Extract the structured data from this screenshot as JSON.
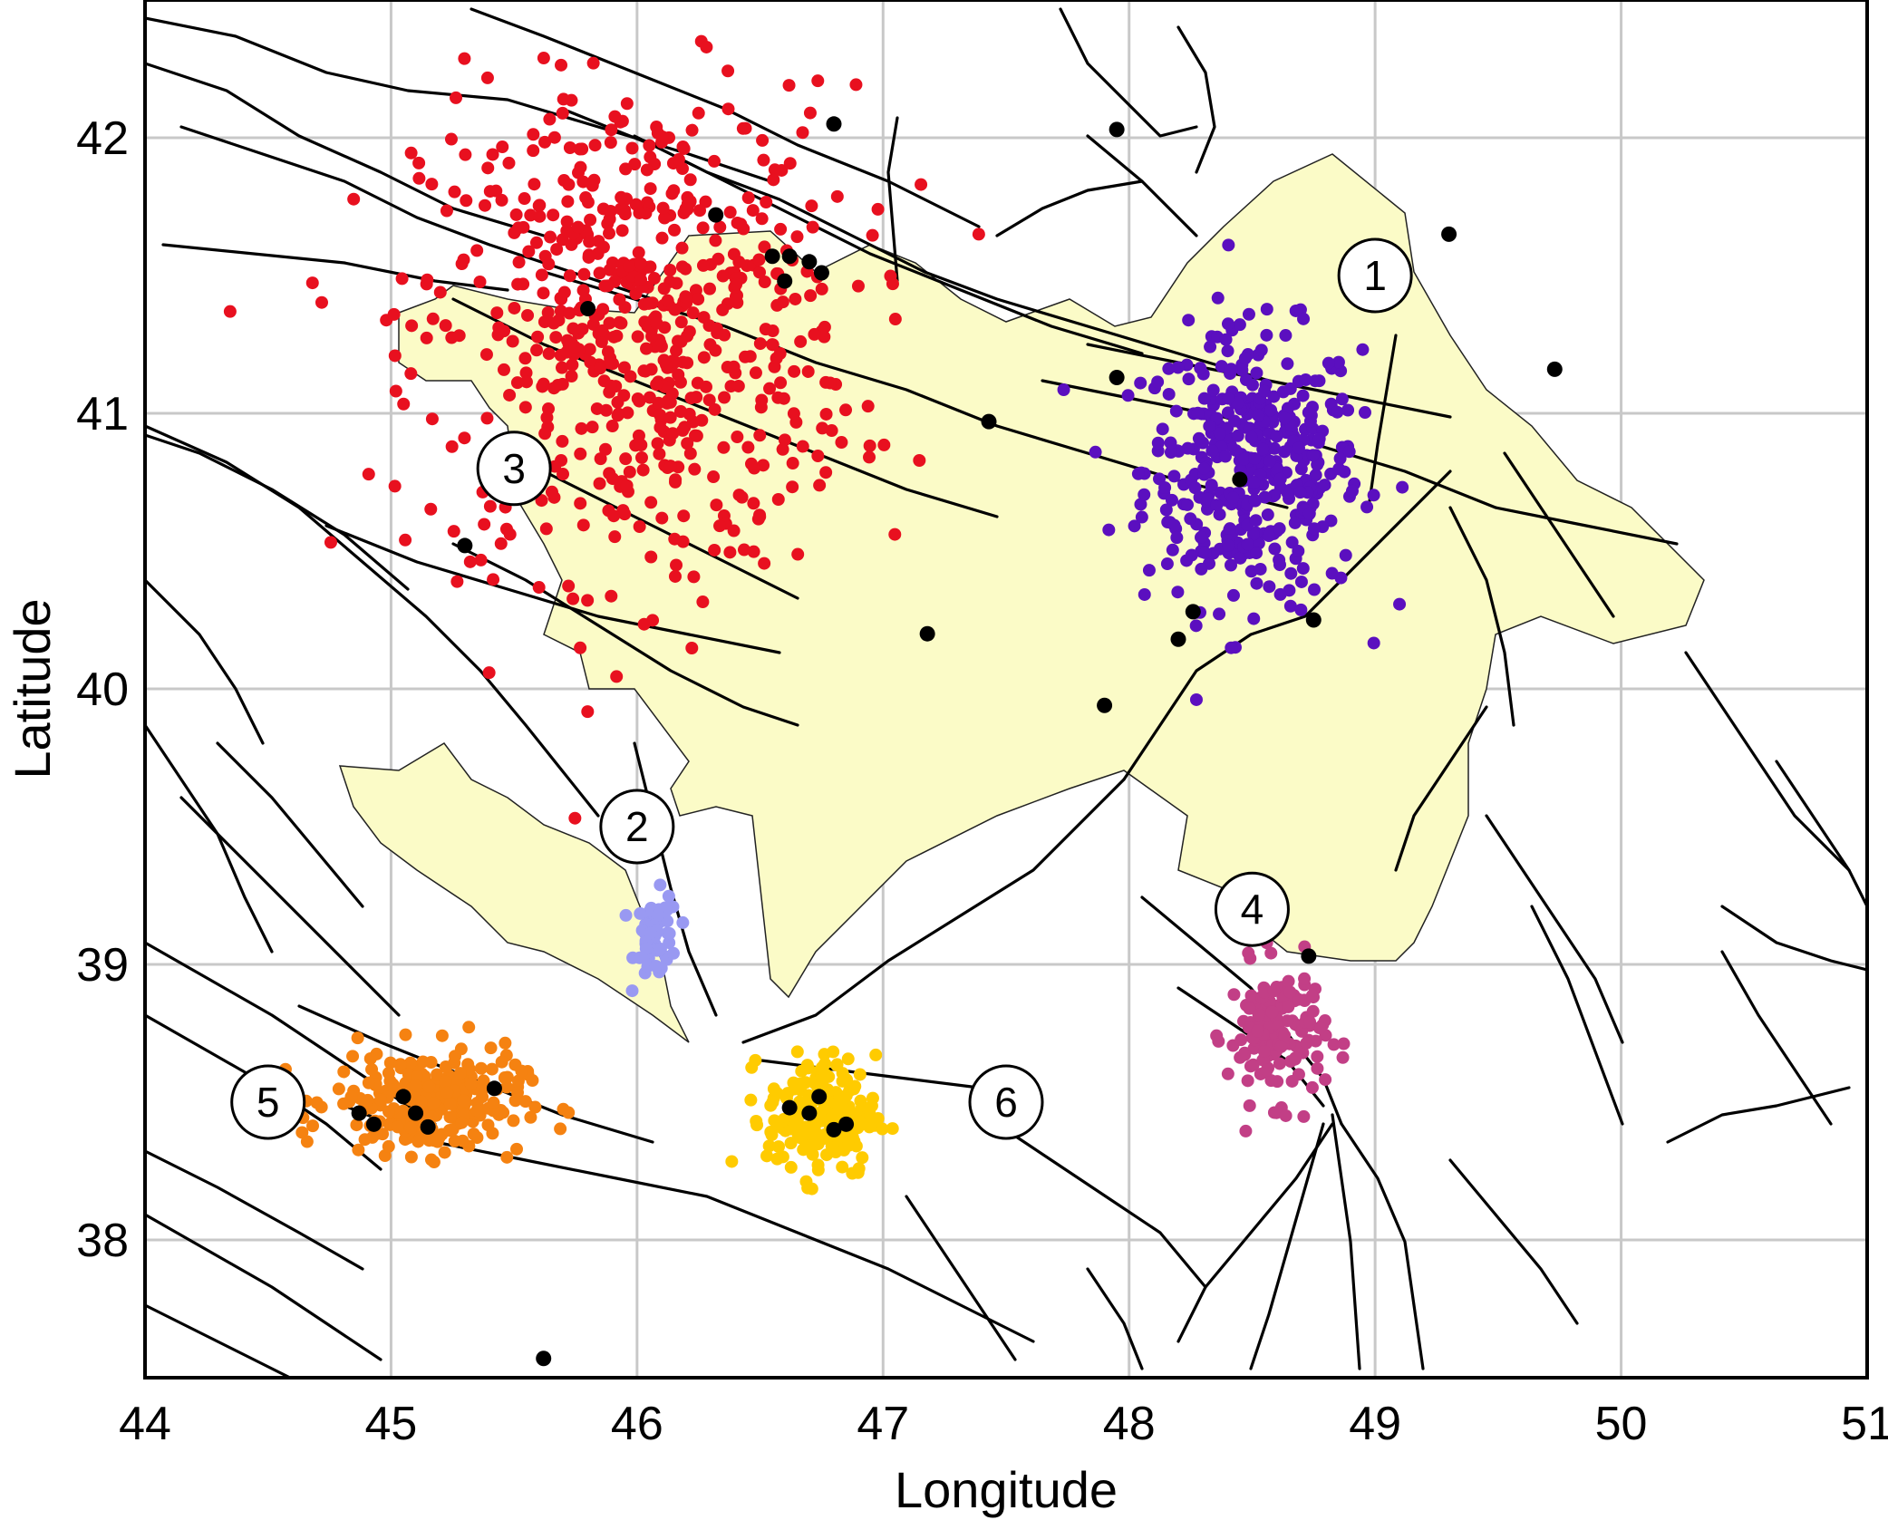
{
  "chart_data": {
    "type": "scatter",
    "title": "",
    "xlabel": "Longitude",
    "ylabel": "Latitude",
    "xlim": [
      44,
      51
    ],
    "ylim": [
      37.5,
      42.5
    ],
    "xticks": [
      "44",
      "45",
      "46",
      "47",
      "48",
      "49",
      "50",
      "51"
    ],
    "yticks": [
      "38",
      "39",
      "40",
      "41",
      "42"
    ],
    "grid": true,
    "colors": {
      "cluster_1": "#5b0fbf",
      "cluster_2": "#9999f2",
      "cluster_3": "#e8101f",
      "cluster_4": "#c23f86",
      "cluster_5": "#f58211",
      "cluster_6": "#ffcb00",
      "black_dots": "#000000",
      "region_fill": "#fbfbc7",
      "fault_lines": "#000000"
    },
    "zone_labels": [
      {
        "text": "1",
        "lon": 49.0,
        "lat": 41.5
      },
      {
        "text": "2",
        "lon": 46.0,
        "lat": 39.5
      },
      {
        "text": "3",
        "lon": 45.5,
        "lat": 40.8
      },
      {
        "text": "4",
        "lon": 48.5,
        "lat": 39.2
      },
      {
        "text": "5",
        "lon": 44.5,
        "lat": 38.5
      },
      {
        "text": "6",
        "lon": 47.5,
        "lat": 38.5
      }
    ],
    "clusters": [
      {
        "id": "1",
        "color": "#5b0fbf",
        "center": [
          48.5,
          40.8
        ],
        "spread": [
          0.4,
          0.45
        ],
        "count": 420
      },
      {
        "id": "2",
        "color": "#9999f2",
        "center": [
          46.08,
          39.1
        ],
        "spread": [
          0.08,
          0.14
        ],
        "count": 55
      },
      {
        "id": "3",
        "color": "#e8101f",
        "center": [
          46.0,
          41.3
        ],
        "spread": [
          0.8,
          0.8
        ],
        "count": 650
      },
      {
        "id": "4",
        "color": "#c23f86",
        "center": [
          48.6,
          38.75
        ],
        "spread": [
          0.18,
          0.22
        ],
        "count": 150
      },
      {
        "id": "5",
        "color": "#f58211",
        "center": [
          45.15,
          38.5
        ],
        "spread": [
          0.35,
          0.17
        ],
        "count": 260
      },
      {
        "id": "6",
        "color": "#ffcb00",
        "center": [
          46.75,
          38.45
        ],
        "spread": [
          0.2,
          0.2
        ],
        "count": 210
      }
    ],
    "black_dots": [
      [
        46.8,
        42.05
      ],
      [
        47.95,
        42.03
      ],
      [
        49.3,
        41.65
      ],
      [
        49.73,
        41.16
      ],
      [
        46.32,
        41.72
      ],
      [
        46.55,
        41.57
      ],
      [
        46.62,
        41.57
      ],
      [
        46.7,
        41.55
      ],
      [
        46.75,
        41.51
      ],
      [
        46.6,
        41.48
      ],
      [
        45.8,
        41.38
      ],
      [
        47.95,
        41.13
      ],
      [
        47.43,
        40.97
      ],
      [
        48.45,
        40.76
      ],
      [
        48.75,
        40.25
      ],
      [
        48.26,
        40.28
      ],
      [
        48.2,
        40.18
      ],
      [
        47.18,
        40.2
      ],
      [
        47.9,
        39.94
      ],
      [
        45.3,
        40.52
      ],
      [
        48.73,
        39.03
      ],
      [
        45.42,
        38.55
      ],
      [
        45.05,
        38.52
      ],
      [
        45.1,
        38.46
      ],
      [
        44.87,
        38.46
      ],
      [
        44.93,
        38.42
      ],
      [
        45.15,
        38.41
      ],
      [
        46.62,
        38.48
      ],
      [
        46.74,
        38.52
      ],
      [
        46.7,
        38.46
      ],
      [
        46.8,
        38.4
      ],
      [
        46.85,
        38.42
      ],
      [
        45.62,
        37.57
      ]
    ]
  }
}
